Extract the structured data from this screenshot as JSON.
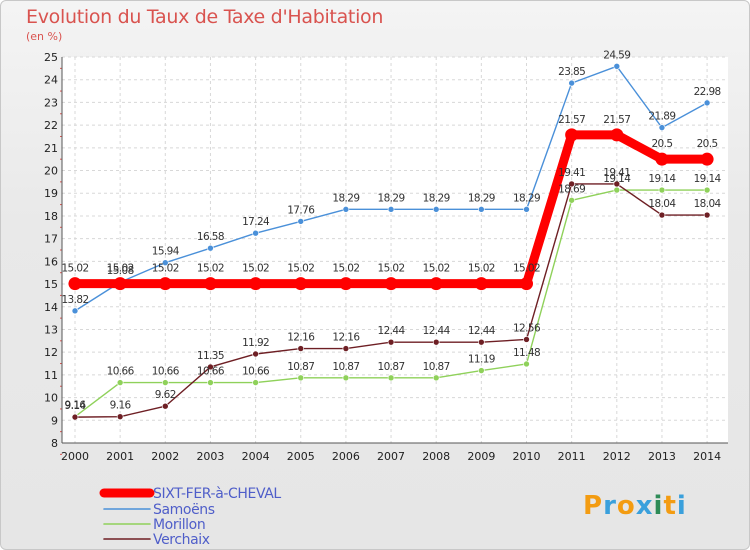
{
  "header": {
    "title": "Evolution du Taux de Taxe d'Habitation",
    "unit": "(en %)"
  },
  "logo": {
    "letters": [
      "P",
      "r",
      "o",
      "x",
      "i",
      "t",
      "i"
    ],
    "colors": [
      "#f39c12",
      "#3aa0dc",
      "#f39c12",
      "#3aa0dc",
      "#2e8b57",
      "#f39c12",
      "#3aa0dc"
    ]
  },
  "colors": {
    "SIXT-FER-à-CHEVAL": "#ff0000",
    "Samoëns": "#4a90d9",
    "Morillon": "#8fd15a",
    "Verchaix": "#6e1f24"
  },
  "chart_data": {
    "type": "line",
    "x": [
      "2000",
      "2001",
      "2002",
      "2003",
      "2004",
      "2005",
      "2006",
      "2007",
      "2008",
      "2009",
      "2010",
      "2011",
      "2012",
      "2013",
      "2014"
    ],
    "ylim": [
      8,
      25
    ],
    "yticks": [
      8,
      9,
      10,
      11,
      12,
      13,
      14,
      15,
      16,
      17,
      18,
      19,
      20,
      21,
      22,
      23,
      24,
      25
    ],
    "grid": true,
    "legend_position": "bottom-left",
    "series": [
      {
        "name": "SIXT-FER-à-CHEVAL",
        "values": [
          15.02,
          15.02,
          15.02,
          15.02,
          15.02,
          15.02,
          15.02,
          15.02,
          15.02,
          15.02,
          15.02,
          21.57,
          21.57,
          20.5,
          20.5
        ],
        "labels": [
          "15.02",
          "15.02",
          "15.02",
          "15.02",
          "15.02",
          "15.02",
          "15.02",
          "15.02",
          "15.02",
          "15.02",
          "15.02",
          "21.57",
          "21.57",
          "20.5",
          "20.5"
        ]
      },
      {
        "name": "Samoëns",
        "values": [
          13.82,
          15.08,
          15.94,
          16.58,
          17.24,
          17.76,
          18.29,
          18.29,
          18.29,
          18.29,
          18.29,
          23.85,
          24.59,
          21.89,
          22.98
        ],
        "labels": [
          "13.82",
          "15.08",
          "15.94",
          "16.58",
          "17.24",
          "17.76",
          "18.29",
          "18.29",
          "18.29",
          "18.29",
          "18.29",
          "23.85",
          "24.59",
          "21.89",
          "22.98"
        ]
      },
      {
        "name": "Morillon",
        "values": [
          9.16,
          10.66,
          10.66,
          10.66,
          10.66,
          10.87,
          10.87,
          10.87,
          10.87,
          11.19,
          11.48,
          18.69,
          19.14,
          19.14,
          19.14
        ],
        "labels": [
          "9.16",
          "10.66",
          "10.66",
          "10.66",
          "10.66",
          "10.87",
          "10.87",
          "10.87",
          "10.87",
          "11.19",
          "11.48",
          "18.69",
          "19.14",
          "19.14",
          "19.14"
        ]
      },
      {
        "name": "Verchaix",
        "values": [
          9.14,
          9.16,
          9.62,
          11.35,
          11.92,
          12.16,
          12.16,
          12.44,
          12.44,
          12.44,
          12.56,
          19.41,
          19.41,
          18.04,
          18.04
        ],
        "labels": [
          "9.14",
          "9.16",
          "9.62",
          "11.35",
          "11.92",
          "12.16",
          "12.16",
          "12.44",
          "12.44",
          "12.44",
          "12.56",
          "19.41",
          "19.41",
          "18.04",
          "18.04"
        ]
      }
    ]
  }
}
